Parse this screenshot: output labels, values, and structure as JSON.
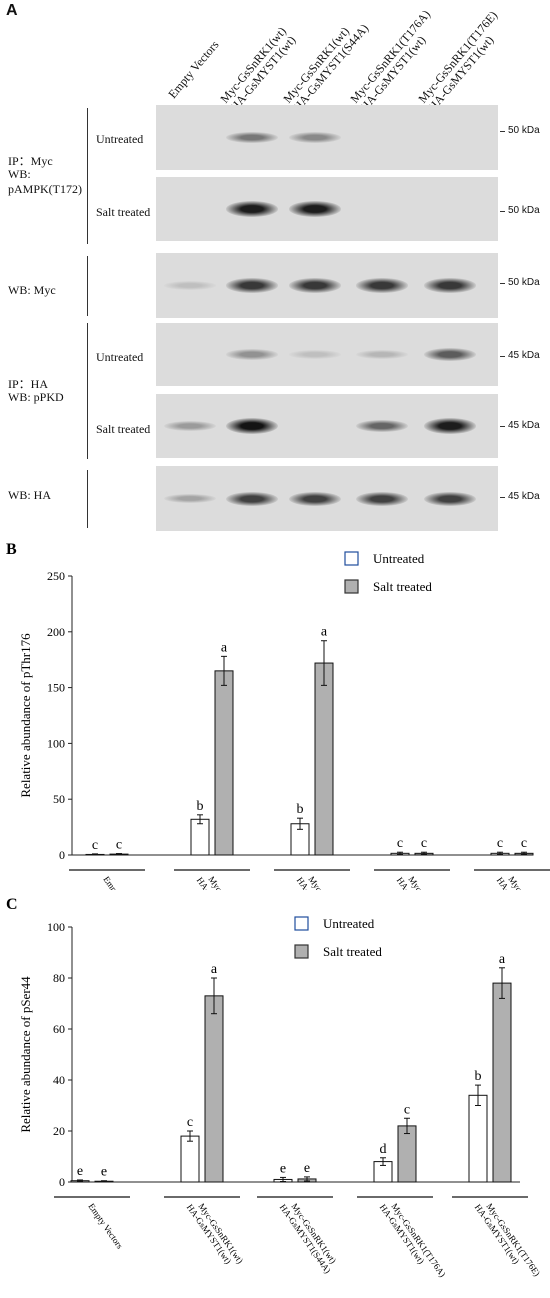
{
  "panelA": {
    "letter": "A",
    "lanes": [
      "Empty Vectors",
      "Myc-GsSnRK1(wt)",
      "Myc-GsSnRK1(wt)",
      "Myc-GsSnRK1(T176A)",
      "Myc-GsSnRK1(T176E)"
    ],
    "lanes_line2": [
      "",
      "HA-GsMYST1(wt)",
      "HA-GsMYST1(S44A)",
      "HA-GsMYST1(wt)",
      "HA-GsMYST1(wt)"
    ],
    "group1": {
      "l1": "IP：Myc",
      "l2": "WB:",
      "l3": "pAMPK(T172)"
    },
    "group2": {
      "l1": "WB: Myc"
    },
    "group3": {
      "l1": "IP：HA",
      "l2": "WB: pPKD"
    },
    "group4": {
      "l1": "WB: HA"
    },
    "untreated": "Untreated",
    "salt": "Salt treated",
    "kda50": "50 kDa",
    "kda45": "45 kDa",
    "band_intensity": {
      "myc_untreated": [
        0,
        0.45,
        0.35,
        0,
        0
      ],
      "myc_salt": [
        0,
        0.95,
        0.95,
        0,
        0
      ],
      "myc_total": [
        0.05,
        0.8,
        0.8,
        0.8,
        0.8
      ],
      "ha_untreated": [
        0,
        0.3,
        0.05,
        0.1,
        0.6
      ],
      "ha_salt": [
        0.25,
        1.0,
        0,
        0.55,
        0.95
      ],
      "ha_total": [
        0.2,
        0.75,
        0.75,
        0.75,
        0.75
      ]
    }
  },
  "chart_data": [
    {
      "type": "bar",
      "panel": "B",
      "ylabel": "Relative abundance of pThr176",
      "ylim": [
        0,
        250
      ],
      "yticks": [
        0,
        50,
        100,
        150,
        200,
        250
      ],
      "categories": [
        "Empty Vectors",
        "Myc-GsSnRK1(wt) HA-GsMYST1(wt)",
        "Myc-GsSnRK1(wt) HA-GsMYST1(S44A)",
        "Myc-GsSnRK1(T176A) HA-GsMYST1(wt)",
        "Myc-GsSnRK1(T176E) HA-GsMYST1(wt)"
      ],
      "cat_line1": [
        "Empty Vectors",
        "Myc-GsSnRK1(wt)",
        "Myc-GsSnRK1(wt)",
        "Myc-GsSnRK1(T176A)",
        "Myc-GsSnRK1(T176E)"
      ],
      "cat_line2": [
        "",
        "HA-GsMYST1(wt)",
        "HA-GsMYST1(S44A)",
        "HA-GsMYST1(wt)",
        "HA-GsMYST1(wt)"
      ],
      "series": [
        {
          "name": "Untreated",
          "values": [
            0.5,
            32,
            28,
            1.5,
            1.5
          ],
          "errors": [
            0.5,
            4,
            5,
            1,
            1
          ],
          "letters": [
            "c",
            "b",
            "b",
            "c",
            "c"
          ],
          "color": "#ffffff"
        },
        {
          "name": "Salt treated",
          "values": [
            0.8,
            165,
            172,
            1.5,
            1.5
          ],
          "errors": [
            0.5,
            13,
            20,
            1,
            1
          ],
          "letters": [
            "c",
            "a",
            "a",
            "c",
            "c"
          ],
          "color": "#b0b0b0"
        }
      ],
      "legend": "top-right"
    },
    {
      "type": "bar",
      "panel": "C",
      "ylabel": "Relative abundance of pSer44",
      "ylim": [
        0,
        100
      ],
      "yticks": [
        0,
        20,
        40,
        60,
        80,
        100
      ],
      "categories": [
        "Empty Vectors",
        "Myc-GsSnRK1(wt) HA-GsMYST1(wt)",
        "Myc-GsSnRK1(wt) HA-GsMYST1(S44A)",
        "Myc-GsSnRK1(T176A) HA-GsMYST1(wt)",
        "Myc-GsSnRK1(T176E) HA-GsMYST1(wt)"
      ],
      "cat_line1": [
        "Empty Vectors",
        "Myc-GsSnRK1(wt)",
        "Myc-GsSnRK1(wt)",
        "Myc-GsSnRK1(T176A)",
        "Myc-GsSnRK1(T176E)"
      ],
      "cat_line2": [
        "",
        "HA-GsMYST1(wt)",
        "HA-GsMYST1(S44A)",
        "HA-GsMYST1(wt)",
        "HA-GsMYST1(wt)"
      ],
      "series": [
        {
          "name": "Untreated",
          "values": [
            0.5,
            18,
            1,
            8,
            34
          ],
          "errors": [
            0.3,
            2,
            0.8,
            1.5,
            4
          ],
          "letters": [
            "e",
            "c",
            "e",
            "d",
            "b"
          ],
          "color": "#ffffff"
        },
        {
          "name": "Salt treated",
          "values": [
            0.3,
            73,
            1.2,
            22,
            78
          ],
          "errors": [
            0.2,
            7,
            0.8,
            3,
            6
          ],
          "letters": [
            "e",
            "a",
            "e",
            "c",
            "a"
          ],
          "color": "#b0b0b0"
        }
      ],
      "legend": "top-right"
    }
  ]
}
